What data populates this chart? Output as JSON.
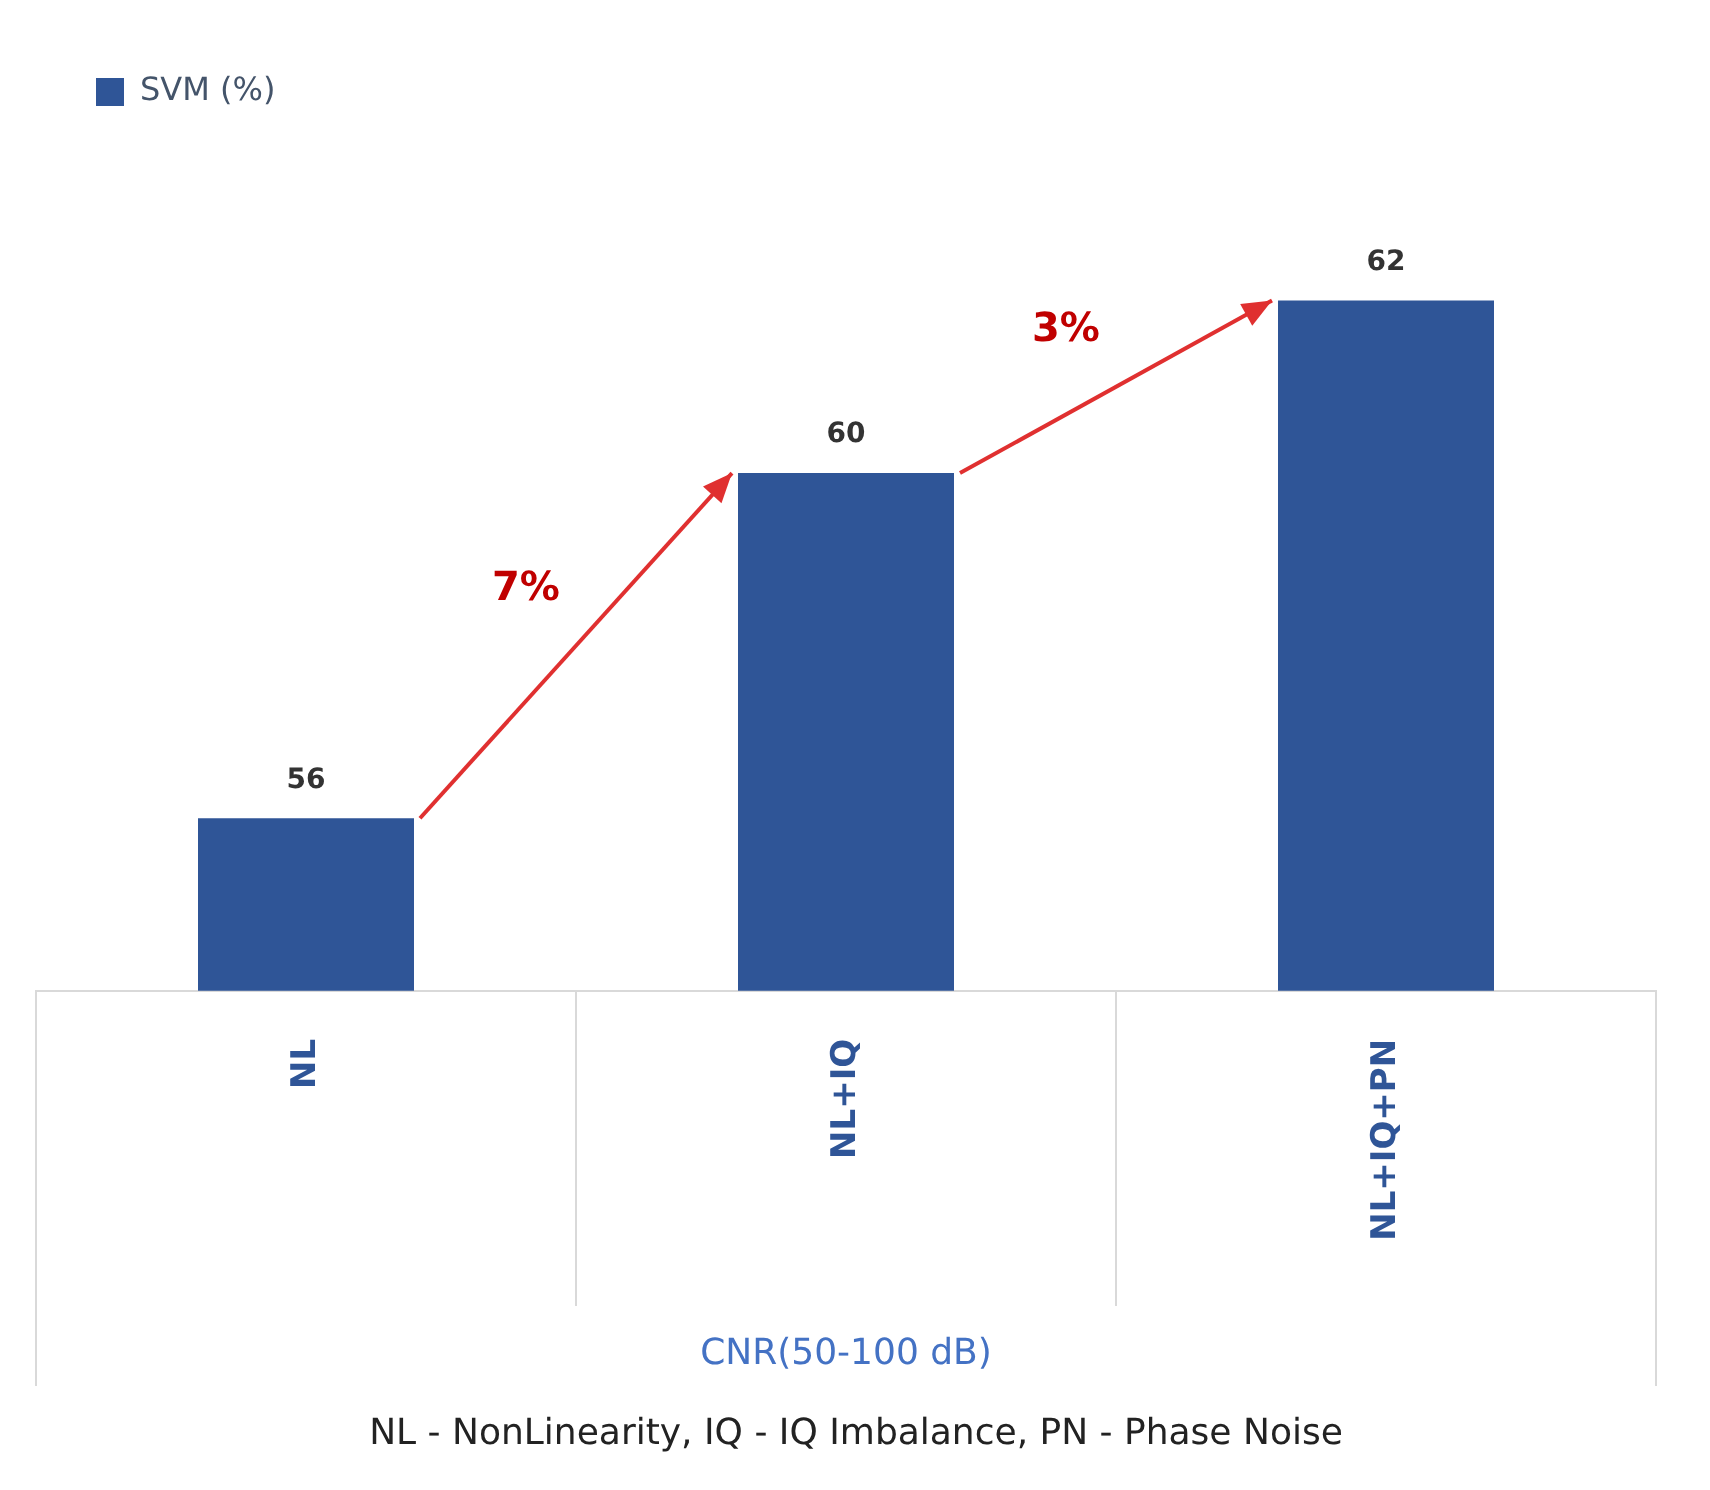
{
  "chart_data": {
    "type": "bar",
    "categories": [
      "NL",
      "NL+IQ",
      "NL+IQ+PN"
    ],
    "series": [
      {
        "name": "SVM (%)",
        "color": "#2f5597",
        "values": [
          56,
          60,
          62
        ]
      }
    ],
    "data_labels": true,
    "legend": "top left",
    "xlabel": "CNR(50-100 dB)",
    "annotations": [
      "7%",
      "3%",
      "NL - NonLinearity, IQ - IQ Imbalance, PN - Phase Noise"
    ]
  }
}
